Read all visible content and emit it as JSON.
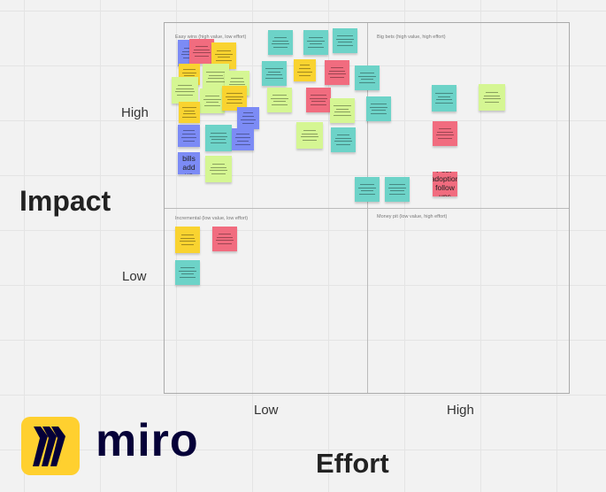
{
  "axes": {
    "y_title": "Impact",
    "y_high": "High",
    "y_low": "Low",
    "x_title": "Effort",
    "x_low": "Low",
    "x_high": "High"
  },
  "quadrants": {
    "top_left": "Easy wins (high value, low effort)",
    "top_right": "Big bets (high value, high effort)",
    "bottom_left": "Incremental (low value, low effort)",
    "bottom_right": "Money pit (low value, high effort)"
  },
  "logo": {
    "wordmark": "miro",
    "color": "#ffd02f",
    "ink": "#050038"
  },
  "colors": {
    "teal": "#6dd3c8",
    "pink": "#f16c7f",
    "yellow": "#f9d330",
    "green": "#d5f693",
    "blue": "#7c8bf5"
  },
  "stickies": [
    {
      "color": "blue",
      "text": ""
    },
    {
      "color": "pink",
      "text": ""
    },
    {
      "color": "yellow",
      "text": ""
    },
    {
      "color": "yellow",
      "text": ""
    },
    {
      "color": "green",
      "text": ""
    },
    {
      "color": "green",
      "text": ""
    },
    {
      "color": "green",
      "text": ""
    },
    {
      "color": "green",
      "text": ""
    },
    {
      "color": "yellow",
      "text": ""
    },
    {
      "color": "yellow",
      "text": ""
    },
    {
      "color": "blue",
      "text": ""
    },
    {
      "color": "blue",
      "text": ""
    },
    {
      "color": "teal",
      "text": ""
    },
    {
      "color": "blue",
      "text": ""
    },
    {
      "color": "blue",
      "text": "Vet bills add up"
    },
    {
      "color": "green",
      "text": ""
    },
    {
      "color": "teal",
      "text": ""
    },
    {
      "color": "teal",
      "text": ""
    },
    {
      "color": "teal",
      "text": ""
    },
    {
      "color": "teal",
      "text": ""
    },
    {
      "color": "yellow",
      "text": ""
    },
    {
      "color": "pink",
      "text": ""
    },
    {
      "color": "green",
      "text": ""
    },
    {
      "color": "pink",
      "text": ""
    },
    {
      "color": "green",
      "text": ""
    },
    {
      "color": "green",
      "text": ""
    },
    {
      "color": "teal",
      "text": ""
    },
    {
      "color": "teal",
      "text": ""
    },
    {
      "color": "teal",
      "text": ""
    },
    {
      "color": "teal",
      "text": ""
    },
    {
      "color": "green",
      "text": ""
    },
    {
      "color": "pink",
      "text": ""
    },
    {
      "color": "teal",
      "text": ""
    },
    {
      "color": "teal",
      "text": ""
    },
    {
      "color": "pink",
      "text": "Post-adoption follow ups"
    },
    {
      "color": "yellow",
      "text": ""
    },
    {
      "color": "pink",
      "text": ""
    },
    {
      "color": "teal",
      "text": ""
    }
  ]
}
